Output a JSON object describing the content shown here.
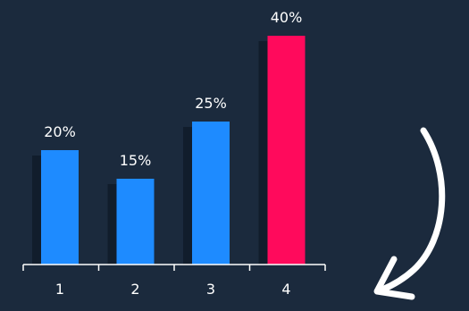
{
  "chart_data": {
    "type": "bar",
    "categories": [
      "1",
      "2",
      "3",
      "4"
    ],
    "values": [
      20,
      15,
      25,
      40
    ],
    "value_labels": [
      "20%",
      "15%",
      "25%",
      "40%"
    ],
    "ylim": [
      0,
      40
    ],
    "grid": false,
    "legend": "none",
    "colors": {
      "background": "#1b2a3d",
      "bar": "#1e8bff",
      "highlight_bar": "#ff0a5c",
      "shadow": "#0f1a28",
      "text": "#ffffff",
      "axis": "#ffffff",
      "arrow": "#ffffff"
    },
    "highlight_index": 3,
    "decoration": "curved-arrow-down-icon"
  }
}
